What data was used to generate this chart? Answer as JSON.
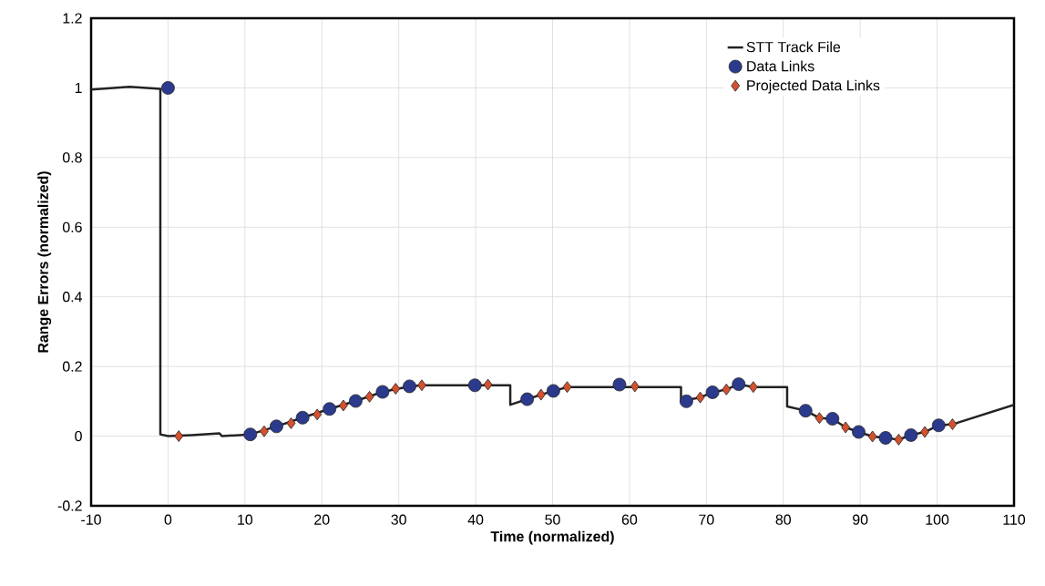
{
  "chart_data": {
    "type": "line",
    "xlabel": "Time (normalized)",
    "ylabel": "Range Errors (normalized)",
    "xlim": [
      -10,
      110
    ],
    "xticks": [
      -10,
      0,
      10,
      20,
      30,
      40,
      50,
      60,
      70,
      80,
      90,
      100,
      110
    ],
    "ylim": [
      -0.2,
      1.2
    ],
    "yticks": [
      -0.2,
      0,
      0.2,
      0.4,
      0.6,
      0.8,
      1,
      1.2
    ],
    "grid": true,
    "legend": "top right",
    "series": [
      {
        "name": "STT Track File",
        "color": "#222222",
        "marker": "none",
        "line_style": "solid",
        "x": [
          -10,
          -5,
          -1,
          -1,
          0,
          3,
          6.7,
          7,
          10.7,
          14.1,
          17.5,
          21.0,
          24.4,
          27.9,
          31.4,
          33.0,
          44.5,
          44.5,
          46.7,
          48.5,
          50.1,
          52.0,
          66.7,
          66.7,
          69.2,
          70.8,
          72.6,
          74.2,
          76.1,
          80.5,
          80.5,
          82.9,
          84.7,
          86.4,
          88.1,
          89.8,
          91.6,
          93.3,
          95.0,
          96.6,
          98.4,
          100.2,
          102.0,
          110
        ],
        "values": [
          0.995,
          1.003,
          0.997,
          0.005,
          0.0,
          0.003,
          0.008,
          0.0,
          0.005,
          0.028,
          0.053,
          0.078,
          0.101,
          0.127,
          0.143,
          0.146,
          0.146,
          0.09,
          0.106,
          0.119,
          0.13,
          0.141,
          0.141,
          0.1,
          0.111,
          0.126,
          0.134,
          0.149,
          0.141,
          0.141,
          0.085,
          0.073,
          0.052,
          0.05,
          0.025,
          0.012,
          -0.001,
          -0.005,
          -0.01,
          0.003,
          0.012,
          0.031,
          0.034,
          0.09
        ]
      },
      {
        "name": "Data Links",
        "type": "scatter",
        "color": "#2b3a8c",
        "marker": "circle",
        "x": [
          0,
          10.7,
          14.1,
          17.5,
          21.0,
          24.4,
          27.9,
          31.4,
          39.9,
          46.7,
          50.1,
          58.7,
          67.4,
          70.8,
          74.2,
          82.9,
          86.4,
          89.8,
          93.3,
          96.6,
          100.2
        ],
        "values": [
          1.0,
          0.005,
          0.028,
          0.053,
          0.078,
          0.101,
          0.127,
          0.143,
          0.146,
          0.106,
          0.13,
          0.148,
          0.1,
          0.126,
          0.149,
          0.073,
          0.05,
          0.012,
          -0.005,
          0.003,
          0.031
        ]
      },
      {
        "name": "Projected Data Links",
        "type": "scatter",
        "color": "#d4502e",
        "marker": "diamond",
        "x": [
          1.4,
          12.5,
          16.0,
          19.4,
          22.8,
          26.2,
          29.6,
          33.0,
          41.6,
          48.5,
          51.9,
          60.7,
          69.2,
          72.6,
          76.1,
          84.7,
          88.1,
          91.6,
          95.0,
          98.4,
          102.0
        ],
        "values": [
          0.0,
          0.014,
          0.037,
          0.062,
          0.088,
          0.113,
          0.136,
          0.146,
          0.148,
          0.119,
          0.141,
          0.143,
          0.111,
          0.134,
          0.141,
          0.052,
          0.025,
          -0.001,
          -0.01,
          0.012,
          0.034
        ]
      }
    ]
  }
}
